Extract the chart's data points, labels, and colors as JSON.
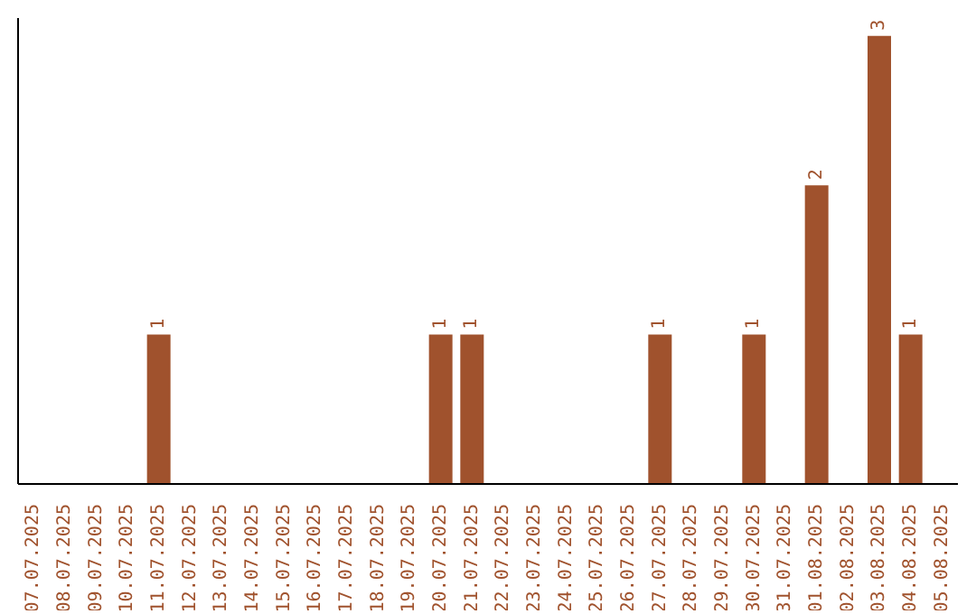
{
  "chart_data": {
    "type": "bar",
    "categories": [
      "07.07.2025",
      "08.07.2025",
      "09.07.2025",
      "10.07.2025",
      "11.07.2025",
      "12.07.2025",
      "13.07.2025",
      "14.07.2025",
      "15.07.2025",
      "16.07.2025",
      "17.07.2025",
      "18.07.2025",
      "19.07.2025",
      "20.07.2025",
      "21.07.2025",
      "22.07.2025",
      "23.07.2025",
      "24.07.2025",
      "25.07.2025",
      "26.07.2025",
      "27.07.2025",
      "28.07.2025",
      "29.07.2025",
      "30.07.2025",
      "31.07.2025",
      "01.08.2025",
      "02.08.2025",
      "03.08.2025",
      "04.08.2025",
      "05.08.2025"
    ],
    "values": [
      0,
      0,
      0,
      0,
      1,
      0,
      0,
      0,
      0,
      0,
      0,
      0,
      0,
      1,
      1,
      0,
      0,
      0,
      0,
      0,
      1,
      0,
      0,
      1,
      0,
      2,
      0,
      3,
      1,
      0
    ],
    "value_labels": [
      null,
      null,
      null,
      null,
      "1",
      null,
      null,
      null,
      null,
      null,
      null,
      null,
      null,
      "1",
      "1",
      null,
      null,
      null,
      null,
      null,
      "1",
      null,
      null,
      "1",
      null,
      "2",
      null,
      "3",
      "1",
      null
    ],
    "color": "#a0522d",
    "grid": false,
    "legend": false,
    "tick_labels": "x"
  }
}
